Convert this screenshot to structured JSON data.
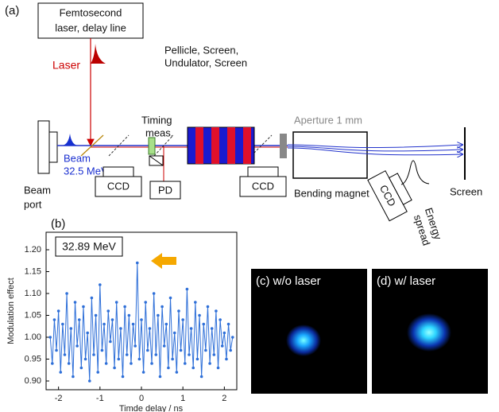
{
  "diagram": {
    "panel_a": "(a)",
    "laser_box": [
      "Femtosecond",
      "laser, delay line"
    ],
    "laser": "Laser",
    "beam": [
      "Beam",
      "32.5 MeV"
    ],
    "beam_port": [
      "Beam",
      "port"
    ],
    "timing": [
      "Timing",
      "meas."
    ],
    "undulator": [
      "Pellicle, Screen,",
      "Undulator, Screen"
    ],
    "aperture": "Aperture 1 mm",
    "magnet": "Bending magnet",
    "ccd": [
      "CCD",
      "CCD",
      "CCD"
    ],
    "pd": "PD",
    "screen": "Screen",
    "energy": [
      "Energy",
      "spread"
    ],
    "panel_b": "(b)",
    "panel_c": "(c) w/o laser",
    "panel_d": "(d) w/ laser"
  },
  "chart_data": {
    "type": "line",
    "ylabel": "Modulation effect",
    "xlabel": "Timde delay / ns",
    "annotation": "32.89 MeV",
    "x": [
      -2.2,
      -2.15,
      -2.1,
      -2.05,
      -2.0,
      -1.95,
      -1.9,
      -1.85,
      -1.8,
      -1.75,
      -1.7,
      -1.65,
      -1.6,
      -1.55,
      -1.5,
      -1.45,
      -1.4,
      -1.35,
      -1.3,
      -1.25,
      -1.2,
      -1.15,
      -1.1,
      -1.05,
      -1.0,
      -0.95,
      -0.9,
      -0.85,
      -0.8,
      -0.75,
      -0.7,
      -0.65,
      -0.6,
      -0.55,
      -0.5,
      -0.45,
      -0.4,
      -0.35,
      -0.3,
      -0.25,
      -0.2,
      -0.15,
      -0.1,
      -0.05,
      0.0,
      0.05,
      0.1,
      0.15,
      0.2,
      0.25,
      0.3,
      0.35,
      0.4,
      0.45,
      0.5,
      0.55,
      0.6,
      0.65,
      0.7,
      0.75,
      0.8,
      0.85,
      0.9,
      0.95,
      1.0,
      1.05,
      1.1,
      1.15,
      1.2,
      1.25,
      1.3,
      1.35,
      1.4,
      1.45,
      1.5,
      1.55,
      1.6,
      1.65,
      1.7,
      1.75,
      1.8,
      1.85,
      1.9,
      1.95,
      2.0,
      2.05,
      2.1,
      2.15,
      2.2
    ],
    "series": [
      {
        "color": "#2e6fd8",
        "values": [
          1.0,
          0.94,
          1.04,
          0.97,
          1.06,
          0.92,
          1.03,
          0.96,
          1.1,
          0.94,
          1.02,
          0.91,
          1.08,
          0.98,
          1.04,
          0.93,
          1.07,
          0.95,
          1.01,
          0.9,
          1.09,
          0.96,
          1.05,
          0.92,
          1.12,
          0.97,
          1.03,
          0.94,
          1.06,
          0.99,
          1.04,
          0.93,
          1.08,
          0.95,
          1.02,
          0.91,
          1.07,
          0.96,
          1.05,
          0.94,
          1.03,
          0.98,
          1.17,
          0.95,
          1.04,
          0.92,
          1.08,
          0.97,
          1.02,
          0.94,
          1.1,
          0.96,
          1.05,
          0.91,
          1.07,
          0.98,
          1.03,
          0.93,
          1.09,
          0.95,
          1.01,
          0.92,
          1.06,
          0.97,
          1.04,
          0.94,
          1.11,
          0.96,
          1.02,
          0.93,
          1.08,
          0.95,
          1.05,
          0.91,
          1.03,
          0.97,
          1.07,
          0.94,
          1.02,
          0.96,
          1.06,
          0.93,
          1.04,
          0.98,
          1.01,
          0.95,
          1.03,
          0.97,
          1.0
        ]
      }
    ],
    "xlim": [
      -2.3,
      2.3
    ],
    "xticks": [
      -2,
      -1,
      0,
      1,
      2
    ],
    "ylim": [
      0.88,
      1.24
    ],
    "yticks": [
      {
        "value": 0.9,
        "label": "0.90"
      },
      0.95,
      {
        "value": 1.0,
        "label": "1.00"
      },
      1.05,
      {
        "value": 1.1,
        "label": "1.10"
      },
      1.15,
      {
        "value": 1.2,
        "label": "1.20"
      }
    ]
  }
}
